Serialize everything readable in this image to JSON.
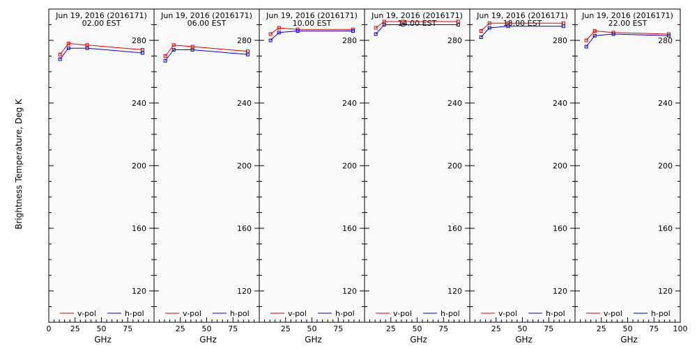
{
  "chart_data": {
    "type": "line",
    "ylabel": "Brightness Temperature, Deg K",
    "xlabel": "GHz",
    "xlim": [
      0,
      100
    ],
    "ylim": [
      100,
      300
    ],
    "x_ticks": [
      0,
      25,
      50,
      75,
      100
    ],
    "y_ticks": [
      120,
      160,
      200,
      240,
      280
    ],
    "legend_position": "bottom",
    "grid": false,
    "series_styles": [
      {
        "name": "v-pol",
        "color": "#dd0000"
      },
      {
        "name": "h-pol",
        "color": "#0000dd"
      }
    ],
    "panels": [
      {
        "title_line1": "Jun 19, 2016 (2016171)",
        "title_line2": "02.00 EST",
        "x": [
          10.7,
          18.7,
          36.5,
          89.0
        ],
        "series": [
          {
            "name": "v-pol",
            "values": [
              271,
              278,
              277,
              274
            ]
          },
          {
            "name": "h-pol",
            "values": [
              268,
              275,
              275,
              272
            ]
          }
        ]
      },
      {
        "title_line1": "Jun 19, 2016 (2016171)",
        "title_line2": "06.00 EST",
        "x": [
          10.7,
          18.7,
          36.5,
          89.0
        ],
        "series": [
          {
            "name": "v-pol",
            "values": [
              270,
              277,
              276,
              273
            ]
          },
          {
            "name": "h-pol",
            "values": [
              267,
              274,
              274,
              271
            ]
          }
        ]
      },
      {
        "title_line1": "Jun 19, 2016 (2016171)",
        "title_line2": "10.00 EST",
        "x": [
          10.7,
          18.7,
          36.5,
          89.0
        ],
        "series": [
          {
            "name": "v-pol",
            "values": [
              284,
              288,
              287,
              287
            ]
          },
          {
            "name": "h-pol",
            "values": [
              280,
              285,
              286,
              286
            ]
          }
        ]
      },
      {
        "title_line1": "Jun 19, 2016 (2016171)",
        "title_line2": "14.00 EST",
        "x": [
          10.7,
          18.7,
          36.5,
          89.0
        ],
        "series": [
          {
            "name": "v-pol",
            "values": [
              288,
              292,
              292,
              292
            ]
          },
          {
            "name": "h-pol",
            "values": [
              284,
              290,
              290,
              290
            ]
          }
        ]
      },
      {
        "title_line1": "Jun 19, 2016 (2016171)",
        "title_line2": "18.00 EST",
        "x": [
          10.7,
          18.7,
          36.5,
          89.0
        ],
        "series": [
          {
            "name": "v-pol",
            "values": [
              286,
              291,
              291,
              291
            ]
          },
          {
            "name": "h-pol",
            "values": [
              282,
              288,
              289,
              289
            ]
          }
        ]
      },
      {
        "title_line1": "Jun 19, 2016 (2016171)",
        "title_line2": "22.00 EST",
        "x": [
          10.7,
          18.7,
          36.5,
          89.0
        ],
        "series": [
          {
            "name": "v-pol",
            "values": [
              280,
              286,
              285,
              284
            ]
          },
          {
            "name": "h-pol",
            "values": [
              276,
              283,
              284,
              283
            ]
          }
        ]
      }
    ]
  }
}
